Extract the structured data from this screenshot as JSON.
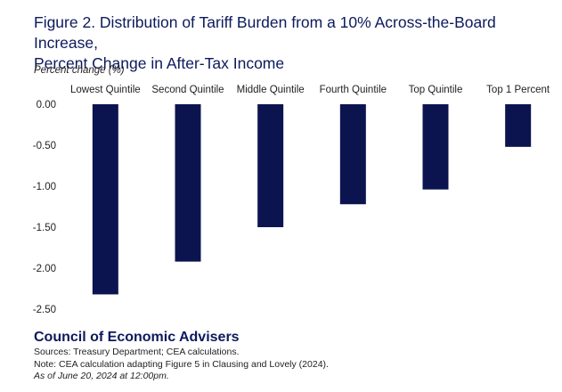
{
  "title_lines": [
    "Figure 2. Distribution of Tariff Burden from a 10% Across-the-Board Increase,",
    "Percent Change in After-Tax Income"
  ],
  "chart_data": {
    "type": "bar",
    "title": "Figure 2. Distribution of Tariff Burden from a 10% Across-the-Board Increase, Percent Change in After-Tax Income",
    "ylabel": "Percent change (%)",
    "categories": [
      "Lowest Quintile",
      "Second Quintile",
      "Middle Quintile",
      "Fourth Quintile",
      "Top Quintile",
      "Top 1 Percent"
    ],
    "values": [
      -2.32,
      -1.92,
      -1.5,
      -1.22,
      -1.04,
      -0.52
    ],
    "ylim": [
      -2.5,
      0
    ],
    "yticks": [
      "0.00",
      "-0.50",
      "-1.00",
      "-1.50",
      "-2.00",
      "-2.50"
    ],
    "ytick_values": [
      0,
      -0.5,
      -1.0,
      -1.5,
      -2.0,
      -2.5
    ],
    "bar_color": "#0c1450",
    "grid": false,
    "legend": "none"
  },
  "footer": {
    "org": "Council of Economic Advisers",
    "sources": "Sources: Treasury Department; CEA calculations.",
    "note": "Note: CEA calculation adapting Figure 5 in Clausing and Lovely (2024).",
    "asof": "As of June 20, 2024 at 12:00pm."
  }
}
